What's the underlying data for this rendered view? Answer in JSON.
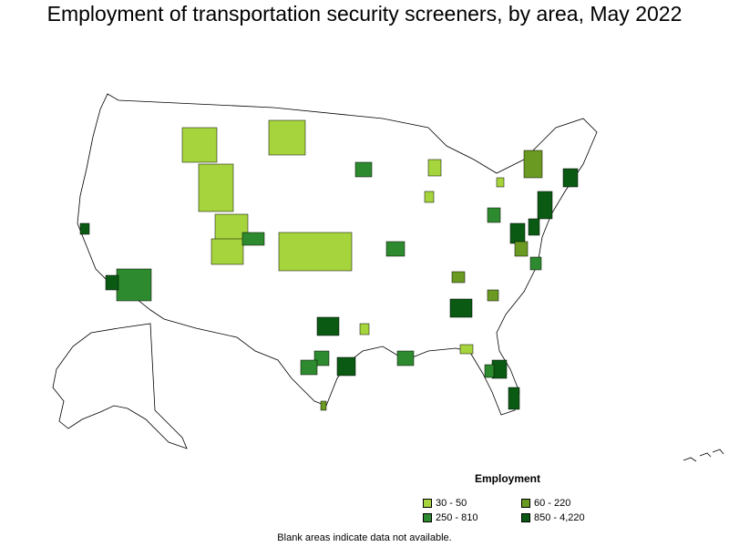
{
  "title": "Employment of transportation security screeners, by area, May 2022",
  "legend": {
    "title": "Employment",
    "items": [
      {
        "label": "30 - 50",
        "color": "#a6d43c"
      },
      {
        "label": "60 - 220",
        "color": "#6a9a22"
      },
      {
        "label": "250 - 810",
        "color": "#2e8a2e"
      },
      {
        "label": "850 - 4,220",
        "color": "#0a5a14"
      }
    ]
  },
  "footnote": "Blank areas indicate data not available."
}
